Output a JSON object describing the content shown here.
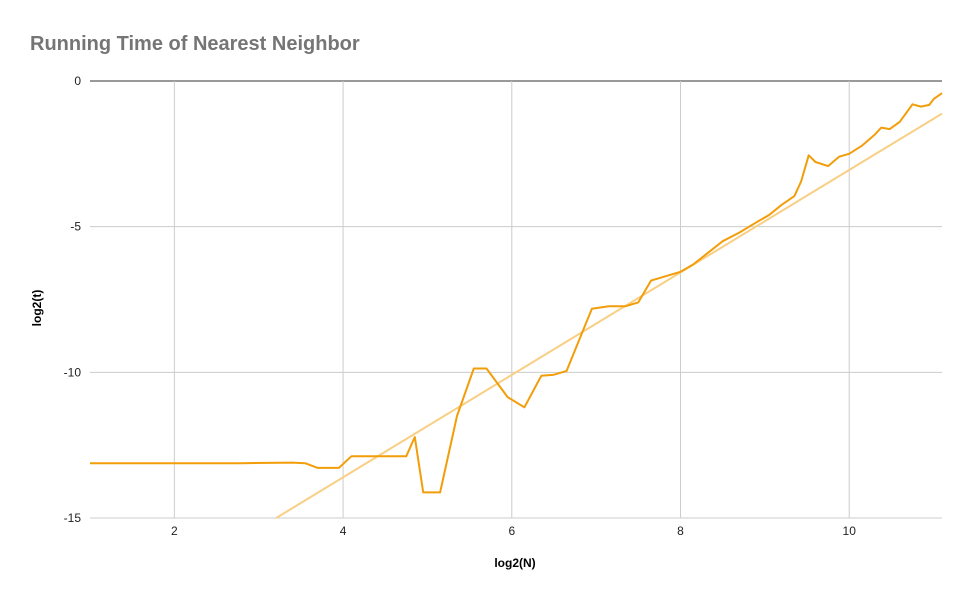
{
  "chart_data": {
    "type": "line",
    "title": "Running Time of Nearest Neighbor",
    "xlabel": "log2(N)",
    "ylabel": "log2(t)",
    "xlim": [
      1,
      11.1
    ],
    "ylim": [
      -15,
      0
    ],
    "x_ticks": [
      2,
      4,
      6,
      8,
      10
    ],
    "x_tick_labels": [
      "2",
      "4",
      "6",
      "8",
      "10"
    ],
    "y_ticks": [
      0,
      -5,
      -10,
      -15
    ],
    "y_tick_labels": [
      "0",
      "-5",
      "-10",
      "-15"
    ],
    "grid": true,
    "legend": "none",
    "colors": {
      "series": "#f29d0a",
      "trendline": "#f8cf85",
      "grid": "#cccccc",
      "zero_line": "#333333",
      "title": "#757575"
    },
    "series": [
      {
        "points": [
          [
            1.0,
            -13.12
          ],
          [
            1.6,
            -13.12
          ],
          [
            2.2,
            -13.12
          ],
          [
            2.8,
            -13.12
          ],
          [
            3.1,
            -13.11
          ],
          [
            3.4,
            -13.1
          ],
          [
            3.55,
            -13.12
          ],
          [
            3.7,
            -13.28
          ],
          [
            3.95,
            -13.28
          ],
          [
            4.1,
            -12.88
          ],
          [
            4.4,
            -12.88
          ],
          [
            4.75,
            -12.88
          ],
          [
            4.85,
            -12.22
          ],
          [
            4.95,
            -14.12
          ],
          [
            5.15,
            -14.12
          ],
          [
            5.35,
            -11.5
          ],
          [
            5.55,
            -9.87
          ],
          [
            5.7,
            -9.87
          ],
          [
            5.95,
            -10.85
          ],
          [
            6.15,
            -11.2
          ],
          [
            6.35,
            -10.12
          ],
          [
            6.5,
            -10.08
          ],
          [
            6.65,
            -9.95
          ],
          [
            6.95,
            -7.82
          ],
          [
            7.15,
            -7.73
          ],
          [
            7.35,
            -7.73
          ],
          [
            7.5,
            -7.6
          ],
          [
            7.65,
            -6.85
          ],
          [
            8.0,
            -6.55
          ],
          [
            8.15,
            -6.3
          ],
          [
            8.5,
            -5.5
          ],
          [
            8.7,
            -5.2
          ],
          [
            8.9,
            -4.85
          ],
          [
            9.05,
            -4.6
          ],
          [
            9.2,
            -4.25
          ],
          [
            9.35,
            -3.95
          ],
          [
            9.43,
            -3.45
          ],
          [
            9.52,
            -2.55
          ],
          [
            9.6,
            -2.78
          ],
          [
            9.75,
            -2.92
          ],
          [
            9.88,
            -2.6
          ],
          [
            10.0,
            -2.5
          ],
          [
            10.15,
            -2.22
          ],
          [
            10.3,
            -1.85
          ],
          [
            10.38,
            -1.6
          ],
          [
            10.48,
            -1.65
          ],
          [
            10.6,
            -1.4
          ],
          [
            10.75,
            -0.8
          ],
          [
            10.85,
            -0.88
          ],
          [
            10.95,
            -0.82
          ],
          [
            11.0,
            -0.62
          ],
          [
            11.1,
            -0.42
          ]
        ]
      }
    ],
    "trendline": {
      "type": "linear",
      "x": [
        1,
        11.1
      ],
      "y": [
        -18.88,
        -1.12
      ]
    }
  }
}
